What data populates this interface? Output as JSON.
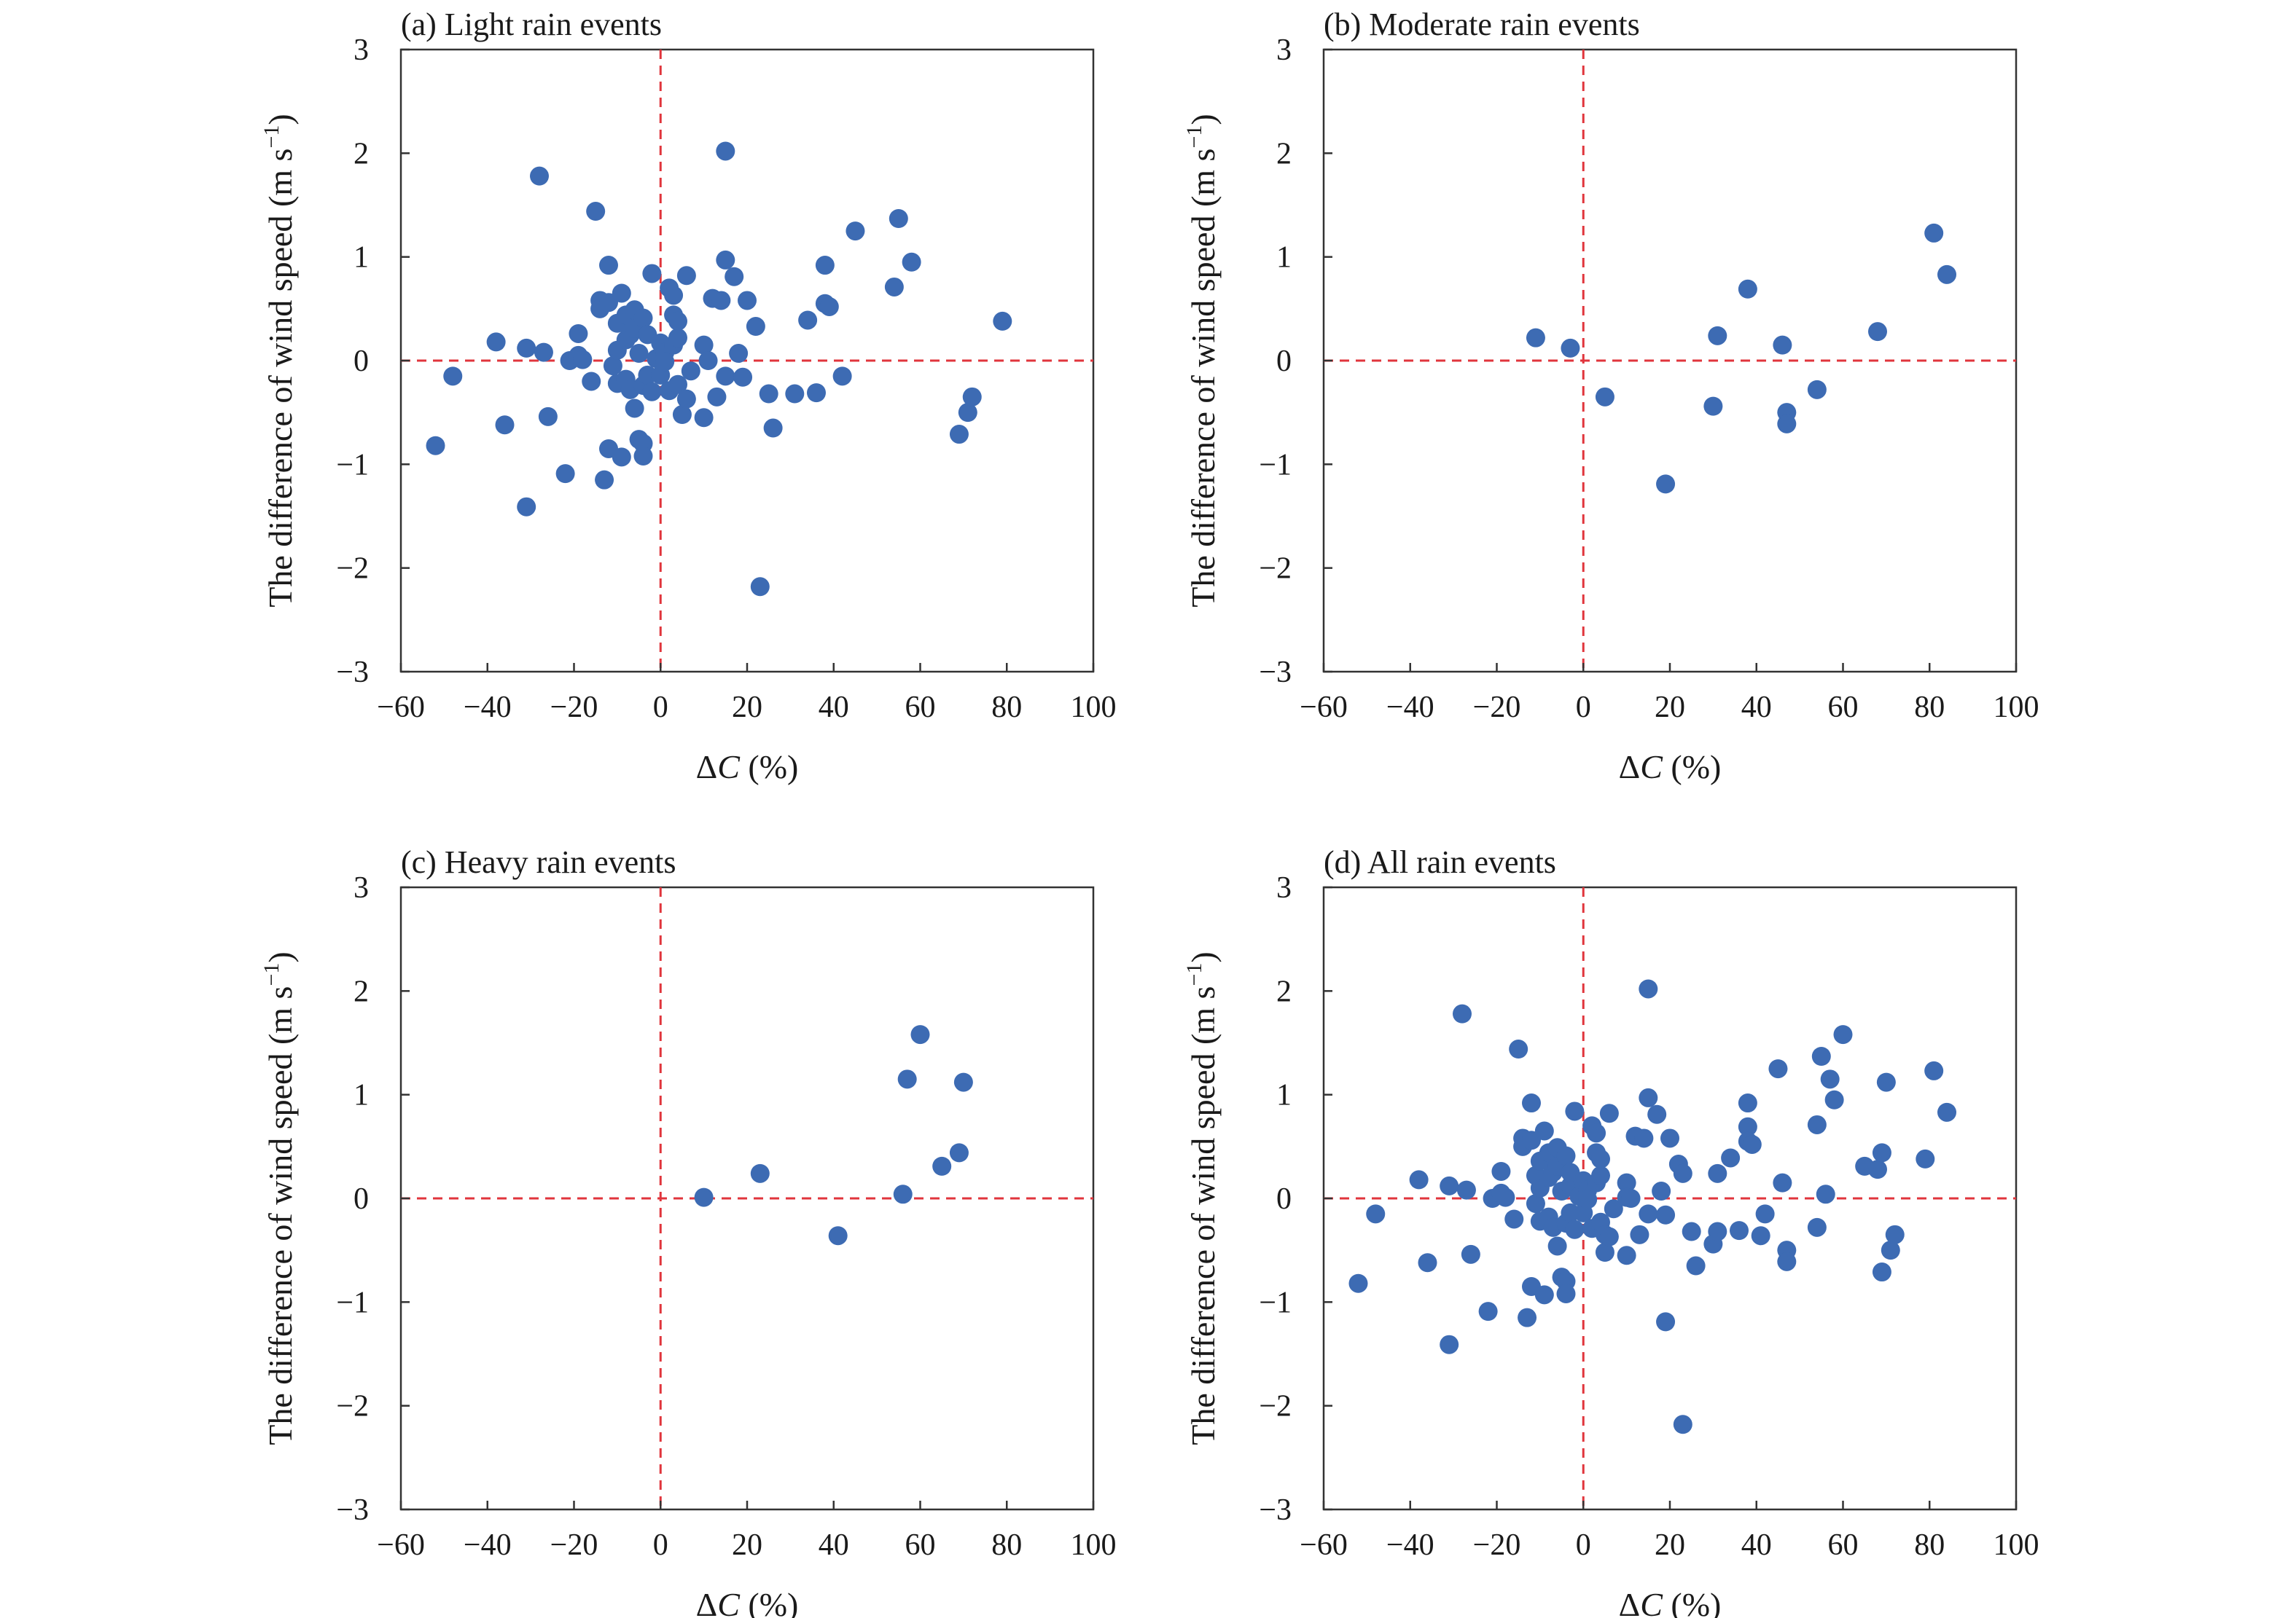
{
  "colors": {
    "marker": "#3d6bb3",
    "reference_line": "#e0353c",
    "frame": "#333333",
    "background": "#ffffff"
  },
  "chart_data": [
    {
      "type": "scatter",
      "title": "(a) Light rain events",
      "xlabel_prefix": "Δ",
      "xlabel_var": "C",
      "xlabel_suffix": " (%)",
      "ylabel_main": "The difference of wind speed (m s",
      "ylabel_sup": "−1",
      "ylabel_close": ")",
      "xlim": [
        -60,
        100
      ],
      "ylim": [
        -3,
        3
      ],
      "xticks": [
        "−60",
        "−40",
        "−20",
        "0",
        "20",
        "40",
        "60",
        "80",
        "100"
      ],
      "yticks": [
        "3",
        "2",
        "1",
        "0",
        "−1",
        "−2",
        "−3"
      ],
      "reference_lines": {
        "x": 0,
        "y": 0,
        "style": "dashed"
      },
      "grid": false,
      "points": [
        [
          -52,
          -0.82
        ],
        [
          -48,
          -0.15
        ],
        [
          -38,
          0.18
        ],
        [
          -36,
          -0.62
        ],
        [
          -31,
          0.12
        ],
        [
          -31,
          -1.41
        ],
        [
          -28,
          1.78
        ],
        [
          -27,
          0.08
        ],
        [
          -26,
          -0.54
        ],
        [
          -22,
          -1.09
        ],
        [
          -21,
          0.0
        ],
        [
          -19,
          0.05
        ],
        [
          -19,
          0.26
        ],
        [
          -18,
          0.01
        ],
        [
          -16,
          -0.2
        ],
        [
          -15,
          1.44
        ],
        [
          -14,
          0.58
        ],
        [
          -14,
          0.5
        ],
        [
          -13,
          -1.15
        ],
        [
          -12,
          0.56
        ],
        [
          -12,
          0.92
        ],
        [
          -12,
          -0.85
        ],
        [
          -11,
          -0.05
        ],
        [
          -10,
          0.1
        ],
        [
          -10,
          -0.22
        ],
        [
          -10,
          0.36
        ],
        [
          -9,
          0.65
        ],
        [
          -9,
          -0.93
        ],
        [
          -8,
          -0.18
        ],
        [
          -8,
          0.2
        ],
        [
          -8,
          0.44
        ],
        [
          -7,
          0.25
        ],
        [
          -7,
          -0.28
        ],
        [
          -6,
          0.49
        ],
        [
          -6,
          -0.46
        ],
        [
          -6,
          0.31
        ],
        [
          -5,
          -0.76
        ],
        [
          -5,
          0.07
        ],
        [
          -4,
          -0.24
        ],
        [
          -4,
          -0.8
        ],
        [
          -4,
          -0.92
        ],
        [
          -4,
          0.41
        ],
        [
          -3,
          -0.14
        ],
        [
          -3,
          0.25
        ],
        [
          -2,
          0.84
        ],
        [
          -2,
          -0.3
        ],
        [
          -1,
          0.02
        ],
        [
          0,
          0.17
        ],
        [
          0,
          -0.14
        ],
        [
          1,
          0.08
        ],
        [
          1,
          -0.01
        ],
        [
          2,
          0.7
        ],
        [
          2,
          -0.29
        ],
        [
          3,
          0.44
        ],
        [
          3,
          0.63
        ],
        [
          3,
          0.15
        ],
        [
          4,
          0.22
        ],
        [
          4,
          -0.23
        ],
        [
          4,
          0.38
        ],
        [
          5,
          -0.52
        ],
        [
          6,
          0.82
        ],
        [
          6,
          -0.37
        ],
        [
          7,
          -0.1
        ],
        [
          10,
          0.15
        ],
        [
          10,
          -0.55
        ],
        [
          11,
          0.0
        ],
        [
          12,
          0.6
        ],
        [
          13,
          -0.35
        ],
        [
          14,
          0.58
        ],
        [
          15,
          0.97
        ],
        [
          15,
          -0.15
        ],
        [
          15,
          2.02
        ],
        [
          17,
          0.81
        ],
        [
          18,
          0.07
        ],
        [
          19,
          -0.16
        ],
        [
          20,
          0.58
        ],
        [
          22,
          0.33
        ],
        [
          23,
          -2.18
        ],
        [
          25,
          -0.32
        ],
        [
          26,
          -0.65
        ],
        [
          31,
          -0.32
        ],
        [
          34,
          0.39
        ],
        [
          36,
          -0.31
        ],
        [
          38,
          0.92
        ],
        [
          38,
          0.55
        ],
        [
          39,
          0.52
        ],
        [
          42,
          -0.15
        ],
        [
          45,
          1.25
        ],
        [
          54,
          0.71
        ],
        [
          55,
          1.37
        ],
        [
          58,
          0.95
        ],
        [
          69,
          -0.71
        ],
        [
          71,
          -0.5
        ],
        [
          72,
          -0.35
        ],
        [
          79,
          0.38
        ]
      ]
    },
    {
      "type": "scatter",
      "title": "(b) Moderate rain events",
      "xlabel_prefix": "Δ",
      "xlabel_var": "C",
      "xlabel_suffix": " (%)",
      "ylabel_main": "The difference of wind speed (m s",
      "ylabel_sup": "−1",
      "ylabel_close": ")",
      "xlim": [
        -60,
        100
      ],
      "ylim": [
        -3,
        3
      ],
      "xticks": [
        "−60",
        "−40",
        "−20",
        "0",
        "20",
        "40",
        "60",
        "80",
        "100"
      ],
      "yticks": [
        "3",
        "2",
        "1",
        "0",
        "−1",
        "−2",
        "−3"
      ],
      "reference_lines": {
        "x": 0,
        "y": 0,
        "style": "dashed"
      },
      "grid": false,
      "points": [
        [
          -11,
          0.22
        ],
        [
          -3,
          0.12
        ],
        [
          5,
          -0.35
        ],
        [
          19,
          -1.19
        ],
        [
          30,
          -0.44
        ],
        [
          31,
          0.24
        ],
        [
          38,
          0.69
        ],
        [
          46,
          0.15
        ],
        [
          47,
          -0.5
        ],
        [
          47,
          -0.61
        ],
        [
          54,
          -0.28
        ],
        [
          68,
          0.28
        ],
        [
          81,
          1.23
        ],
        [
          84,
          0.83
        ]
      ]
    },
    {
      "type": "scatter",
      "title": "(c) Heavy rain events",
      "xlabel_prefix": "Δ",
      "xlabel_var": "C",
      "xlabel_suffix": " (%)",
      "ylabel_main": "The difference of wind speed (m s",
      "ylabel_sup": "−1",
      "ylabel_close": ")",
      "xlim": [
        -60,
        100
      ],
      "ylim": [
        -3,
        3
      ],
      "xticks": [
        "−60",
        "−40",
        "−20",
        "0",
        "20",
        "40",
        "60",
        "80",
        "100"
      ],
      "yticks": [
        "3",
        "2",
        "1",
        "0",
        "−1",
        "−2",
        "−3"
      ],
      "reference_lines": {
        "x": 0,
        "y": 0,
        "style": "dashed"
      },
      "grid": false,
      "points": [
        [
          10,
          0.01
        ],
        [
          23,
          0.24
        ],
        [
          41,
          -0.36
        ],
        [
          56,
          0.04
        ],
        [
          57,
          1.15
        ],
        [
          60,
          1.58
        ],
        [
          65,
          0.31
        ],
        [
          69,
          0.44
        ],
        [
          70,
          1.12
        ]
      ]
    },
    {
      "type": "scatter",
      "title": "(d) All rain events",
      "xlabel_prefix": "Δ",
      "xlabel_var": "C",
      "xlabel_suffix": " (%)",
      "ylabel_main": "The difference of wind speed (m s",
      "ylabel_sup": "−1",
      "ylabel_close": ")",
      "xlim": [
        -60,
        100
      ],
      "ylim": [
        -3,
        3
      ],
      "xticks": [
        "−60",
        "−40",
        "−20",
        "0",
        "20",
        "40",
        "60",
        "80",
        "100"
      ],
      "yticks": [
        "3",
        "2",
        "1",
        "0",
        "−1",
        "−2",
        "−3"
      ],
      "reference_lines": {
        "x": 0,
        "y": 0,
        "style": "dashed"
      },
      "grid": false,
      "points": [
        [
          -52,
          -0.82
        ],
        [
          -48,
          -0.15
        ],
        [
          -38,
          0.18
        ],
        [
          -36,
          -0.62
        ],
        [
          -31,
          0.12
        ],
        [
          -31,
          -1.41
        ],
        [
          -28,
          1.78
        ],
        [
          -27,
          0.08
        ],
        [
          -26,
          -0.54
        ],
        [
          -22,
          -1.09
        ],
        [
          -21,
          0.0
        ],
        [
          -19,
          0.05
        ],
        [
          -19,
          0.26
        ],
        [
          -18,
          0.01
        ],
        [
          -16,
          -0.2
        ],
        [
          -15,
          1.44
        ],
        [
          -14,
          0.58
        ],
        [
          -14,
          0.5
        ],
        [
          -13,
          -1.15
        ],
        [
          -12,
          0.56
        ],
        [
          -12,
          0.92
        ],
        [
          -12,
          -0.85
        ],
        [
          -11,
          0.22
        ],
        [
          -11,
          -0.05
        ],
        [
          -10,
          0.1
        ],
        [
          -10,
          -0.22
        ],
        [
          -10,
          0.36
        ],
        [
          -9,
          0.65
        ],
        [
          -9,
          -0.93
        ],
        [
          -8,
          -0.18
        ],
        [
          -8,
          0.2
        ],
        [
          -8,
          0.44
        ],
        [
          -7,
          0.25
        ],
        [
          -7,
          -0.28
        ],
        [
          -6,
          0.49
        ],
        [
          -6,
          -0.46
        ],
        [
          -6,
          0.31
        ],
        [
          -5,
          -0.76
        ],
        [
          -5,
          0.07
        ],
        [
          -4,
          -0.24
        ],
        [
          -4,
          -0.8
        ],
        [
          -4,
          -0.92
        ],
        [
          -4,
          0.41
        ],
        [
          -3,
          0.12
        ],
        [
          -3,
          -0.14
        ],
        [
          -3,
          0.25
        ],
        [
          -2,
          0.84
        ],
        [
          -2,
          -0.3
        ],
        [
          -1,
          0.02
        ],
        [
          0,
          0.17
        ],
        [
          0,
          -0.14
        ],
        [
          1,
          0.08
        ],
        [
          1,
          -0.01
        ],
        [
          2,
          0.7
        ],
        [
          2,
          -0.29
        ],
        [
          3,
          0.44
        ],
        [
          3,
          0.63
        ],
        [
          3,
          0.15
        ],
        [
          4,
          0.22
        ],
        [
          4,
          -0.23
        ],
        [
          4,
          0.38
        ],
        [
          5,
          -0.35
        ],
        [
          5,
          -0.52
        ],
        [
          6,
          0.82
        ],
        [
          6,
          -0.37
        ],
        [
          7,
          -0.1
        ],
        [
          10,
          0.15
        ],
        [
          10,
          0.01
        ],
        [
          10,
          -0.55
        ],
        [
          11,
          0.0
        ],
        [
          12,
          0.6
        ],
        [
          13,
          -0.35
        ],
        [
          14,
          0.58
        ],
        [
          15,
          0.97
        ],
        [
          15,
          -0.15
        ],
        [
          15,
          2.02
        ],
        [
          17,
          0.81
        ],
        [
          18,
          0.07
        ],
        [
          19,
          -0.16
        ],
        [
          19,
          -1.19
        ],
        [
          20,
          0.58
        ],
        [
          22,
          0.33
        ],
        [
          23,
          -2.18
        ],
        [
          23,
          0.24
        ],
        [
          25,
          -0.32
        ],
        [
          26,
          -0.65
        ],
        [
          30,
          -0.44
        ],
        [
          31,
          -0.32
        ],
        [
          31,
          0.24
        ],
        [
          34,
          0.39
        ],
        [
          36,
          -0.31
        ],
        [
          38,
          0.69
        ],
        [
          38,
          0.92
        ],
        [
          38,
          0.55
        ],
        [
          39,
          0.52
        ],
        [
          41,
          -0.36
        ],
        [
          42,
          -0.15
        ],
        [
          45,
          1.25
        ],
        [
          46,
          0.15
        ],
        [
          47,
          -0.5
        ],
        [
          47,
          -0.61
        ],
        [
          54,
          -0.28
        ],
        [
          54,
          0.71
        ],
        [
          55,
          1.37
        ],
        [
          56,
          0.04
        ],
        [
          57,
          1.15
        ],
        [
          58,
          0.95
        ],
        [
          60,
          1.58
        ],
        [
          65,
          0.31
        ],
        [
          68,
          0.28
        ],
        [
          69,
          0.44
        ],
        [
          69,
          -0.71
        ],
        [
          70,
          1.12
        ],
        [
          71,
          -0.5
        ],
        [
          72,
          -0.35
        ],
        [
          79,
          0.38
        ],
        [
          81,
          1.23
        ],
        [
          84,
          0.83
        ]
      ]
    }
  ]
}
